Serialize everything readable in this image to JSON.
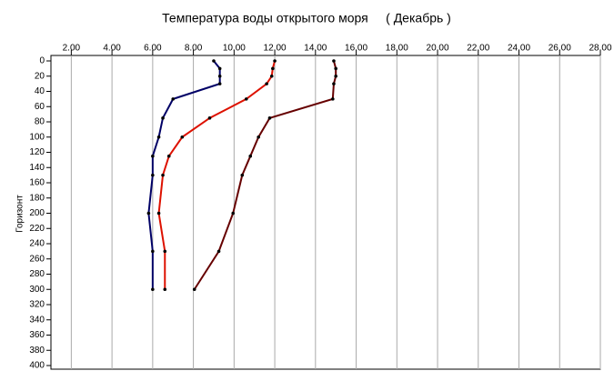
{
  "chart_data": {
    "type": "line",
    "title": "Температура воды открытого моря     ( Декабрь )",
    "y_label": "Горизонт",
    "y": [
      0,
      10,
      20,
      30,
      50,
      75,
      100,
      125,
      150,
      200,
      250,
      300
    ],
    "series": [
      {
        "color": "#000066",
        "values": [
          9.0,
          9.3,
          9.3,
          9.3,
          7.0,
          6.5,
          6.3,
          6.0,
          6.0,
          5.8,
          6.0,
          6.0
        ]
      },
      {
        "color": "#dd1100",
        "values": [
          12.0,
          11.9,
          11.85,
          11.6,
          10.6,
          8.8,
          7.45,
          6.8,
          6.5,
          6.3,
          6.6,
          6.6
        ]
      },
      {
        "color": "#660000",
        "values": [
          14.9,
          15.0,
          15.0,
          14.9,
          14.85,
          11.75,
          11.2,
          10.8,
          10.4,
          9.95,
          9.25,
          8.05
        ]
      }
    ],
    "xlim": [
      1,
      28
    ],
    "xticks": [
      {
        "value": 2,
        "label": "2.00"
      },
      {
        "value": 4,
        "label": "4.00"
      },
      {
        "value": 6,
        "label": "6.00"
      },
      {
        "value": 8,
        "label": "8.00"
      },
      {
        "value": 10,
        "label": "10.00"
      },
      {
        "value": 12,
        "label": "12.00"
      },
      {
        "value": 14,
        "label": "14.00"
      },
      {
        "value": 16,
        "label": "16.00"
      },
      {
        "value": 18,
        "label": "18.00"
      },
      {
        "value": 20,
        "label": "20.00"
      },
      {
        "value": 22,
        "label": "22.00"
      },
      {
        "value": 24,
        "label": "24.00"
      },
      {
        "value": 26,
        "label": "26.00"
      },
      {
        "value": 28,
        "label": "28.00"
      }
    ],
    "ylim": [
      0,
      400
    ],
    "yticks": [
      0,
      20,
      40,
      60,
      80,
      100,
      120,
      140,
      160,
      180,
      200,
      220,
      240,
      260,
      280,
      300,
      320,
      340,
      360,
      380,
      400
    ],
    "y_inverted": true,
    "grid": true
  }
}
